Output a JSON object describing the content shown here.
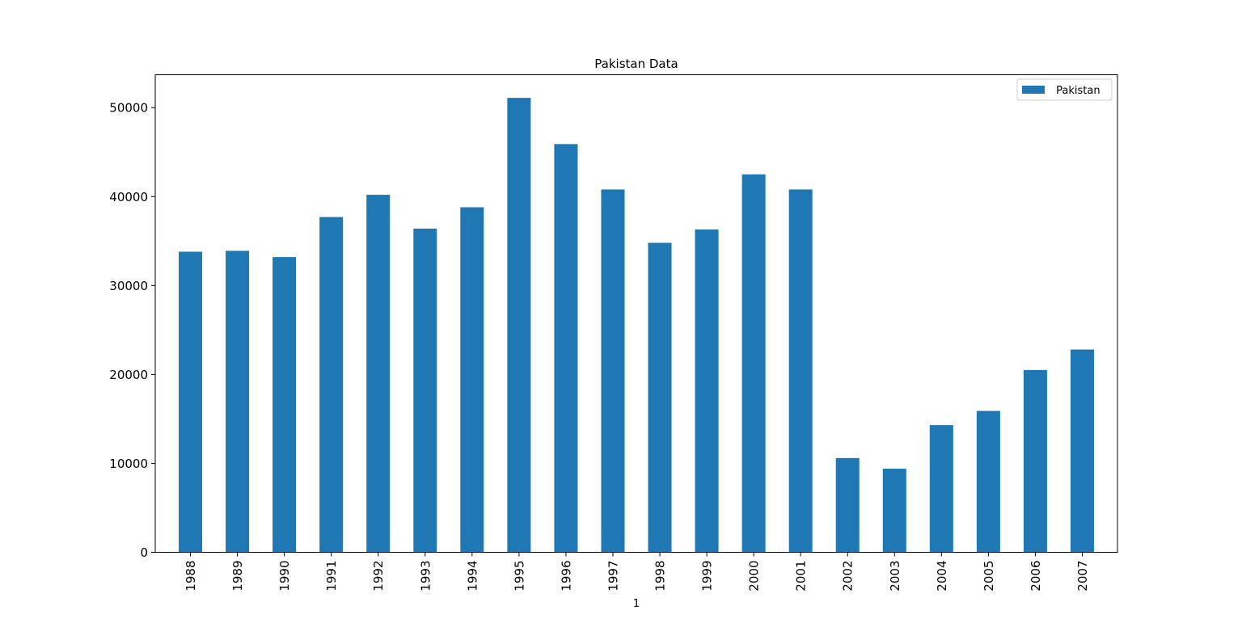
{
  "chart_data": {
    "type": "bar",
    "title": "Pakistan Data",
    "xlabel": "1",
    "ylabel": "",
    "categories": [
      "1988",
      "1989",
      "1990",
      "1991",
      "1992",
      "1993",
      "1994",
      "1995",
      "1996",
      "1997",
      "1998",
      "1999",
      "2000",
      "2001",
      "2002",
      "2003",
      "2004",
      "2005",
      "2006",
      "2007"
    ],
    "series": [
      {
        "name": " Pakistan",
        "color": "#1f77b4",
        "values": [
          33800,
          33900,
          33200,
          37700,
          40200,
          36400,
          38800,
          51100,
          45900,
          40800,
          34800,
          36300,
          42500,
          40800,
          10600,
          9400,
          14300,
          15900,
          20500,
          22800
        ]
      }
    ],
    "ylim": [
      0,
      53700
    ],
    "yticks": [
      0,
      10000,
      20000,
      30000,
      40000,
      50000
    ],
    "ytick_labels": [
      "0",
      "10000",
      "20000",
      "30000",
      "40000",
      "50000"
    ],
    "grid": false,
    "legend_position": "top-right"
  }
}
